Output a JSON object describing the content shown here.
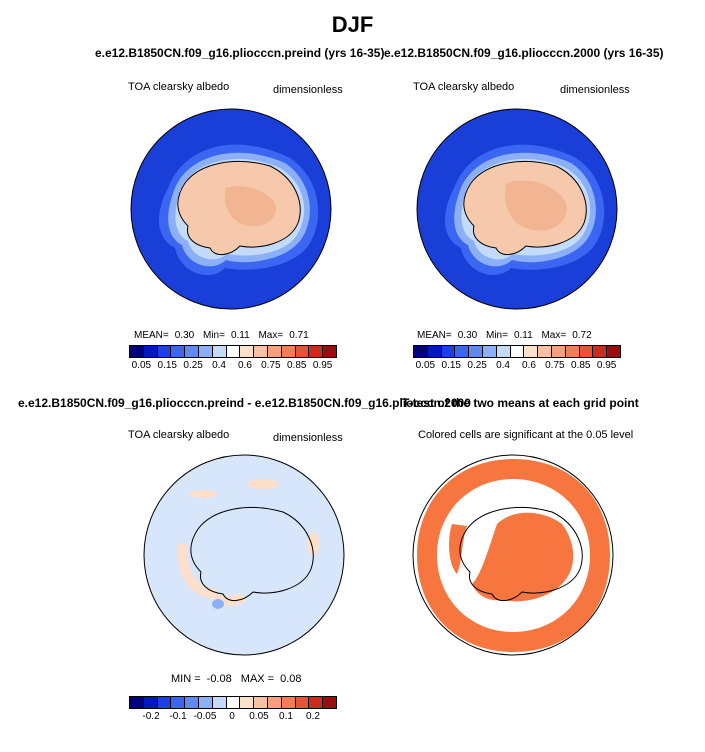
{
  "title": "DJF",
  "panels": [
    {
      "title": "e.e12.B1850CN.f09_g16.pliocccn.preind (yrs 16-35)",
      "left_label": "TOA clearsky albedo",
      "right_label": "dimensionless",
      "stats": {
        "mean_label": "MEAN=",
        "mean": "0.30",
        "min_label": "Min=",
        "min": "0.11",
        "max_label": "Max=",
        "max": "0.71"
      },
      "colorbar_ticks": [
        "0.05",
        "0.15",
        "0.25",
        "0.4",
        "0.6",
        "0.75",
        "0.85",
        "0.95"
      ]
    },
    {
      "title": "e.e12.B1850CN.f09_g16.pliocccn.2000 (yrs 16-35)",
      "left_label": "TOA clearsky albedo",
      "right_label": "dimensionless",
      "stats": {
        "mean_label": "MEAN=",
        "mean": "0.30",
        "min_label": "Min=",
        "min": "0.11",
        "max_label": "Max=",
        "max": "0.72"
      },
      "colorbar_ticks": [
        "0.05",
        "0.15",
        "0.25",
        "0.4",
        "0.6",
        "0.75",
        "0.85",
        "0.95"
      ]
    },
    {
      "title": "e.e12.B1850CN.f09_g16.pliocccn.preind - e.e12.B1850CN.f09_g16.pliocccn.2000",
      "left_label": "TOA clearsky albedo",
      "right_label": "dimensionless",
      "stats": {
        "min_label": "MIN =",
        "min": "-0.08",
        "max_label": "MAX =",
        "max": "0.08"
      },
      "colorbar_ticks": [
        "-0.2",
        "-0.1",
        "-0.05",
        "0",
        "0.05",
        "0.1",
        "0.2"
      ]
    },
    {
      "title": "T-test of the two means at each grid point",
      "subtitle": "Colored cells are significant at the 0.05 level"
    }
  ],
  "colors": {
    "ocean": "#1a3fd9",
    "ice_light": "#f6c9ad",
    "ice_mid": "#f2b594",
    "diff_background": "#d7e6fb",
    "significant": "#f77640",
    "colorbar": [
      "#00007a",
      "#0019b8",
      "#1d3fe6",
      "#3a66f2",
      "#5f8af5",
      "#8cb0f8",
      "#c4daf9",
      "#ffffff",
      "#fde0cc",
      "#f9c1a2",
      "#f6a07c",
      "#f27d56",
      "#e65533",
      "#cc2a1b",
      "#9b0d0d"
    ]
  }
}
